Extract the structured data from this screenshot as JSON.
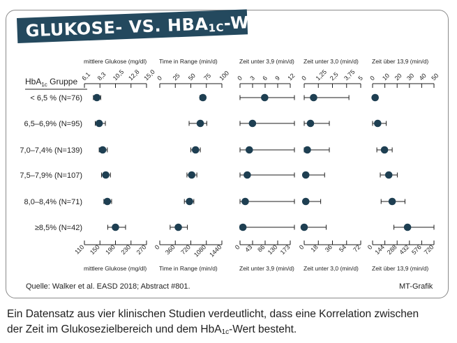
{
  "title": {
    "main": "GLUKOSE- VS. HBA",
    "sub": "1C",
    "tail": "-WERTE"
  },
  "group_header": {
    "main": "HbA",
    "sub": "1c",
    "tail": " Gruppe"
  },
  "source": "Quelle: Walker et al. EASD 2018; Abstract #801.",
  "credit": "MT-Grafik",
  "caption": {
    "line1": "Ein Datensatz aus vier klinischen Studien verdeutlicht, dass eine Korrelation zwischen",
    "line2_before": "der Zeit im Glukosezielbereich und dem HbA",
    "line2_sub": "1c",
    "line2_after": "-Wert besteht."
  },
  "colors": {
    "marker": "#1e3f52",
    "line": "#1e1e1e",
    "title_bg": "#24495e"
  },
  "chart_data": {
    "type": "scatter",
    "groups": [
      "< 6,5 % (N=76)",
      "6,5–6,9% (N=95)",
      "7,0–7,4% (N=139)",
      "7,5–7,9% (N=107)",
      "8,0–8,4% (N=71)",
      "≥8,5% (N=42)"
    ],
    "panels": [
      {
        "label": "mittlere Glukose (mg/dl)",
        "ticks_top": [
          "6,1",
          "8,3",
          "10,5",
          "12,8",
          "15,0"
        ],
        "ticks_bottom": [
          "110",
          "150",
          "190",
          "230",
          "270"
        ],
        "range": [
          110,
          270
        ],
        "values": [
          [
            142,
            133,
            152
          ],
          [
            148,
            138,
            164
          ],
          [
            157,
            148,
            169
          ],
          [
            165,
            154,
            177
          ],
          [
            169,
            160,
            180
          ],
          [
            190,
            170,
            216
          ]
        ]
      },
      {
        "label": "Time in Range (min/d)",
        "ticks_top": [
          "0",
          "25",
          "50",
          "75",
          "100"
        ],
        "ticks_bottom": [
          "0",
          "360",
          "720",
          "1080",
          "1440"
        ],
        "range": [
          0,
          1440
        ],
        "values": [
          [
            1000,
            930,
            1060
          ],
          [
            940,
            680,
            1090
          ],
          [
            830,
            720,
            940
          ],
          [
            740,
            630,
            860
          ],
          [
            690,
            570,
            790
          ],
          [
            430,
            240,
            640
          ]
        ]
      },
      {
        "label": "Zeit unter 3,9 (min/d)",
        "ticks_top": [
          "0",
          "3",
          "6",
          "9",
          "12"
        ],
        "ticks_bottom": [
          "0",
          "43",
          "86",
          "130",
          "173"
        ],
        "range": [
          0,
          173
        ],
        "values": [
          [
            85,
            0,
            190
          ],
          [
            43,
            0,
            190
          ],
          [
            32,
            0,
            190
          ],
          [
            25,
            0,
            190
          ],
          [
            18,
            0,
            190
          ],
          [
            10,
            0,
            190
          ]
        ]
      },
      {
        "label": "Zeit unter 3,0 (min/d)",
        "ticks_top": [
          "0",
          "1,25",
          "2,5",
          "3,75",
          "5"
        ],
        "ticks_bottom": [
          "0",
          "18",
          "36",
          "54",
          "72"
        ],
        "range": [
          0,
          72
        ],
        "values": [
          [
            12,
            0,
            57
          ],
          [
            8,
            0,
            32
          ],
          [
            4,
            0,
            32
          ],
          [
            2,
            0,
            26
          ],
          [
            2,
            0,
            21
          ],
          [
            0,
            0,
            28
          ]
        ]
      },
      {
        "label": "Zeit über 13,9 (min/d)",
        "ticks_top": [
          "0",
          "10",
          "20",
          "30",
          "40",
          "50"
        ],
        "ticks_bottom": [
          "0",
          "144",
          "288",
          "432",
          "576",
          "720"
        ],
        "range": [
          0,
          720
        ],
        "values": [
          [
            30,
            0,
            60
          ],
          [
            60,
            0,
            160
          ],
          [
            140,
            50,
            230
          ],
          [
            190,
            90,
            290
          ],
          [
            230,
            100,
            380
          ],
          [
            410,
            250,
            720
          ]
        ]
      }
    ]
  }
}
